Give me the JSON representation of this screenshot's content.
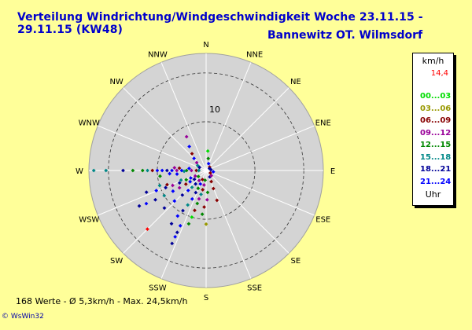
{
  "chart_data": {
    "type": "scatter",
    "subtype": "polar-wind-rose",
    "title": "Verteilung Windrichtung/Windgeschwindigkeit  Woche 23.11.15 - 29.11.15 (KW48)",
    "subtitle": "Bannewitz OT. Wilmsdorf",
    "directions": [
      "N",
      "NNE",
      "NE",
      "ENE",
      "E",
      "ESE",
      "SE",
      "SSE",
      "S",
      "SSW",
      "SW",
      "WSW",
      "W",
      "WNW",
      "NW",
      "NNW"
    ],
    "radial_unit": "km/h",
    "radial_max": 24,
    "radial_tick_label": "10",
    "radial_tick_value": 10,
    "legend": {
      "title": "km/h",
      "max_label": "14,4",
      "unit_label": "Uhr",
      "bins": [
        {
          "label": "00...03",
          "color": "#00dd00"
        },
        {
          "label": "03...06",
          "color": "#999900"
        },
        {
          "label": "06...09",
          "color": "#880000"
        },
        {
          "label": "09...12",
          "color": "#990099"
        },
        {
          "label": "12...15",
          "color": "#008800"
        },
        {
          "label": "15...18",
          "color": "#008888"
        },
        {
          "label": "18...21",
          "color": "#000099"
        },
        {
          "label": "21...24",
          "color": "#0000ff"
        }
      ]
    },
    "points": [
      {
        "dir": 270,
        "speed": 23.0,
        "color": "#008888"
      },
      {
        "dir": 270,
        "speed": 20.5,
        "color": "#008888"
      },
      {
        "dir": 270,
        "speed": 17.0,
        "color": "#000099"
      },
      {
        "dir": 270,
        "speed": 15.0,
        "color": "#008800"
      },
      {
        "dir": 270,
        "speed": 13.0,
        "color": "#008800"
      },
      {
        "dir": 270,
        "speed": 12.0,
        "color": "#008888"
      },
      {
        "dir": 270,
        "speed": 11.0,
        "color": "#880000"
      },
      {
        "dir": 270,
        "speed": 10.0,
        "color": "#0000ff"
      },
      {
        "dir": 270,
        "speed": 9.0,
        "color": "#0000ff"
      },
      {
        "dir": 270,
        "speed": 8.0,
        "color": "#000099"
      },
      {
        "dir": 270,
        "speed": 7.0,
        "color": "#0000ff"
      },
      {
        "dir": 270,
        "speed": 6.0,
        "color": "#990099"
      },
      {
        "dir": 270,
        "speed": 5.0,
        "color": "#0000ff"
      },
      {
        "dir": 270,
        "speed": 4.0,
        "color": "#008800"
      },
      {
        "dir": 270,
        "speed": 3.0,
        "color": "#990099"
      },
      {
        "dir": 270,
        "speed": 2.0,
        "color": "#880000"
      },
      {
        "dir": 270,
        "speed": 1.5,
        "color": "#008888"
      },
      {
        "dir": 265,
        "speed": 7.5,
        "color": "#0000ff"
      },
      {
        "dir": 275,
        "speed": 6.5,
        "color": "#990099"
      },
      {
        "dir": 275,
        "speed": 5.5,
        "color": "#880000"
      },
      {
        "dir": 263,
        "speed": 9.5,
        "color": "#008800"
      },
      {
        "dir": 263,
        "speed": 6.0,
        "color": "#0000ff"
      },
      {
        "dir": 277,
        "speed": 3.5,
        "color": "#0000ff"
      },
      {
        "dir": 268,
        "speed": 4.5,
        "color": "#008888"
      },
      {
        "dir": 250,
        "speed": 13.0,
        "color": "#000099"
      },
      {
        "dir": 248,
        "speed": 11.0,
        "color": "#0000ff"
      },
      {
        "dir": 247,
        "speed": 9.0,
        "color": "#000099"
      },
      {
        "dir": 246,
        "speed": 7.5,
        "color": "#990099"
      },
      {
        "dir": 245,
        "speed": 6.0,
        "color": "#000099"
      },
      {
        "dir": 245,
        "speed": 4.5,
        "color": "#008800"
      },
      {
        "dir": 244,
        "speed": 3.5,
        "color": "#0000ff"
      },
      {
        "dir": 243,
        "speed": 2.5,
        "color": "#990099"
      },
      {
        "dir": 252,
        "speed": 10.0,
        "color": "#008888"
      },
      {
        "dir": 250,
        "speed": 8.5,
        "color": "#880000"
      },
      {
        "dir": 249,
        "speed": 5.5,
        "color": "#008888"
      },
      {
        "dir": 242,
        "speed": 15.5,
        "color": "#000099"
      },
      {
        "dir": 241,
        "speed": 14.0,
        "color": "#0000ff"
      },
      {
        "dir": 240,
        "speed": 12.0,
        "color": "#000099"
      },
      {
        "dir": 239,
        "speed": 10.0,
        "color": "#008888"
      },
      {
        "dir": 238,
        "speed": 8.0,
        "color": "#0000ff"
      },
      {
        "dir": 237,
        "speed": 6.5,
        "color": "#990099"
      },
      {
        "dir": 236,
        "speed": 5.0,
        "color": "#880000"
      },
      {
        "dir": 235,
        "speed": 4.0,
        "color": "#0000ff"
      },
      {
        "dir": 233,
        "speed": 3.0,
        "color": "#000099"
      },
      {
        "dir": 232,
        "speed": 2.0,
        "color": "#008800"
      },
      {
        "dir": 225,
        "speed": 17.0,
        "color": "#ff0000"
      },
      {
        "dir": 228,
        "speed": 11.5,
        "color": "#000099"
      },
      {
        "dir": 226,
        "speed": 9.0,
        "color": "#0000ff"
      },
      {
        "dir": 224,
        "speed": 7.0,
        "color": "#000099"
      },
      {
        "dir": 222,
        "speed": 5.5,
        "color": "#0000ff"
      },
      {
        "dir": 220,
        "speed": 4.5,
        "color": "#008888"
      },
      {
        "dir": 218,
        "speed": 3.5,
        "color": "#000099"
      },
      {
        "dir": 215,
        "speed": 2.5,
        "color": "#990099"
      },
      {
        "dir": 213,
        "speed": 13.0,
        "color": "#000099"
      },
      {
        "dir": 212,
        "speed": 11.0,
        "color": "#0000ff"
      },
      {
        "dir": 210,
        "speed": 9.5,
        "color": "#000099"
      },
      {
        "dir": 208,
        "speed": 8.0,
        "color": "#008888"
      },
      {
        "dir": 206,
        "speed": 6.5,
        "color": "#0000ff"
      },
      {
        "dir": 205,
        "speed": 5.0,
        "color": "#000099"
      },
      {
        "dir": 204,
        "speed": 4.0,
        "color": "#008800"
      },
      {
        "dir": 203,
        "speed": 3.0,
        "color": "#0000ff"
      },
      {
        "dir": 202,
        "speed": 2.0,
        "color": "#880000"
      },
      {
        "dir": 205,
        "speed": 15.0,
        "color": "#0000ff"
      },
      {
        "dir": 205,
        "speed": 16.5,
        "color": "#000099"
      },
      {
        "dir": 205,
        "speed": 14.0,
        "color": "#000099"
      },
      {
        "dir": 205,
        "speed": 12.5,
        "color": "#0000ff"
      },
      {
        "dir": 198,
        "speed": 11.5,
        "color": "#008800"
      },
      {
        "dir": 197,
        "speed": 10.0,
        "color": "#00dd00"
      },
      {
        "dir": 196,
        "speed": 8.5,
        "color": "#880000"
      },
      {
        "dir": 195,
        "speed": 7.0,
        "color": "#008800"
      },
      {
        "dir": 194,
        "speed": 6.0,
        "color": "#990099"
      },
      {
        "dir": 192,
        "speed": 5.0,
        "color": "#008888"
      },
      {
        "dir": 190,
        "speed": 4.0,
        "color": "#880000"
      },
      {
        "dir": 188,
        "speed": 3.0,
        "color": "#990099"
      },
      {
        "dir": 186,
        "speed": 2.0,
        "color": "#008800"
      },
      {
        "dir": 185,
        "speed": 9.0,
        "color": "#008800"
      },
      {
        "dir": 183,
        "speed": 7.5,
        "color": "#880000"
      },
      {
        "dir": 180,
        "speed": 11.0,
        "color": "#999900"
      },
      {
        "dir": 178,
        "speed": 6.0,
        "color": "#990099"
      },
      {
        "dir": 176,
        "speed": 4.5,
        "color": "#008800"
      },
      {
        "dir": 160,
        "speed": 6.5,
        "color": "#880000"
      },
      {
        "dir": 158,
        "speed": 4.0,
        "color": "#880000"
      },
      {
        "dir": 155,
        "speed": 2.5,
        "color": "#880000"
      },
      {
        "dir": 150,
        "speed": 1.5,
        "color": "#000099"
      },
      {
        "dir": 330,
        "speed": 8.0,
        "color": "#990099"
      },
      {
        "dir": 325,
        "speed": 6.0,
        "color": "#0000ff"
      },
      {
        "dir": 320,
        "speed": 4.5,
        "color": "#880000"
      },
      {
        "dir": 315,
        "speed": 3.5,
        "color": "#0000ff"
      },
      {
        "dir": 310,
        "speed": 2.5,
        "color": "#990099"
      },
      {
        "dir": 300,
        "speed": 2.0,
        "color": "#008888"
      },
      {
        "dir": 295,
        "speed": 1.5,
        "color": "#000099"
      },
      {
        "dir": 5,
        "speed": 4.0,
        "color": "#00dd00"
      },
      {
        "dir": 10,
        "speed": 2.5,
        "color": "#008800"
      },
      {
        "dir": 20,
        "speed": 1.5,
        "color": "#0000ff"
      },
      {
        "dir": 45,
        "speed": 1.0,
        "color": "#880000"
      },
      {
        "dir": 80,
        "speed": 1.0,
        "color": "#000099"
      },
      {
        "dir": 100,
        "speed": 1.5,
        "color": "#0000ff"
      },
      {
        "dir": 120,
        "speed": 1.0,
        "color": "#880000"
      },
      {
        "dir": 135,
        "speed": 1.5,
        "color": "#990099"
      },
      {
        "dir": 60,
        "speed": 0.8,
        "color": "#000099"
      }
    ]
  },
  "footer": {
    "stats": "168 Werte   -   Ø 5,3km/h  -  Max. 24,5km/h",
    "brand": "© WsWin32"
  },
  "colors": {
    "background": "#ffff99",
    "plot_area": "#d4d4d4",
    "title": "#0000cc"
  }
}
